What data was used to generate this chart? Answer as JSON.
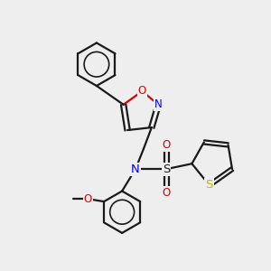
{
  "bg_color": "#eeeeee",
  "bond_color": "#1a1a1a",
  "bond_width": 1.6,
  "atom_colors": {
    "N": "#0000ee",
    "O": "#dd0000",
    "S_sulfonyl": "#1a1a1a",
    "S_thiophene": "#bbbb00",
    "C": "#1a1a1a"
  },
  "font_size_atom": 8.5,
  "font_size_label": 7.0
}
